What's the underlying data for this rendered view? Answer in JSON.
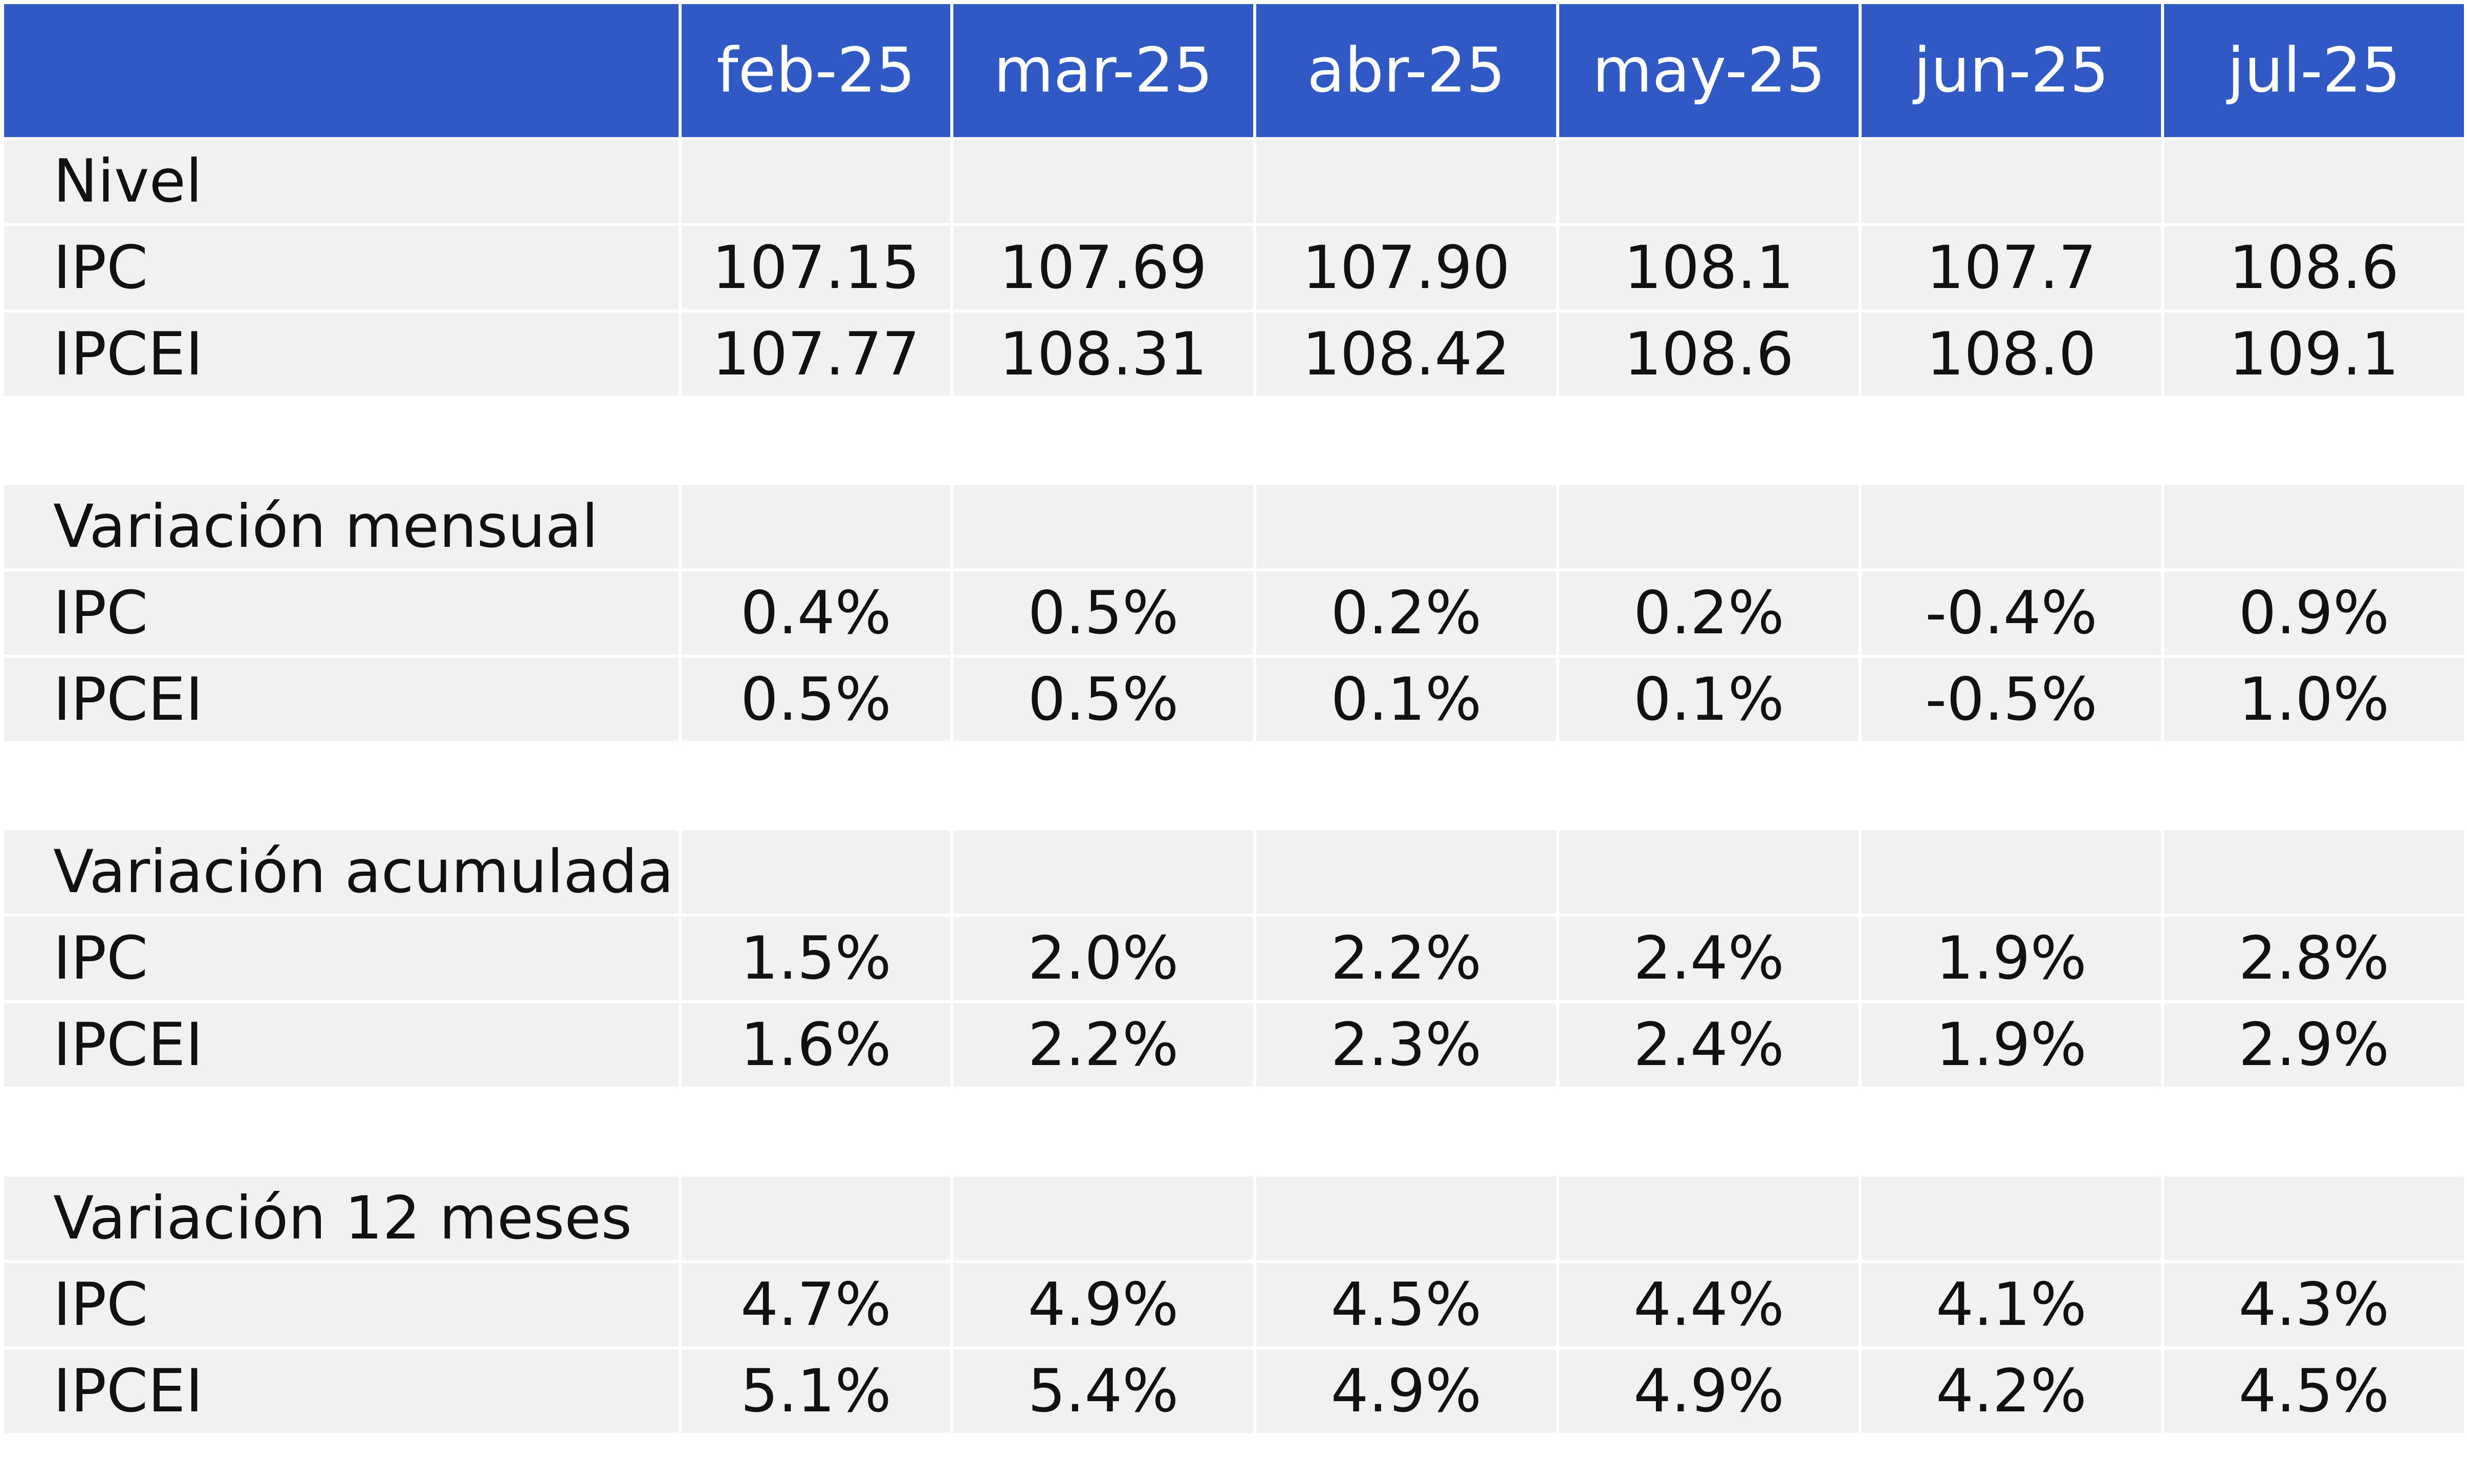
{
  "chart_data": {
    "type": "table",
    "columns": [
      "feb-25",
      "mar-25",
      "abr-25",
      "may-25",
      "jun-25",
      "jul-25"
    ],
    "sections": [
      {
        "title": "Nivel",
        "rows": [
          {
            "label": "IPC",
            "values": [
              "107.15",
              "107.69",
              "107.90",
              "108.1",
              "107.7",
              "108.6"
            ]
          },
          {
            "label": "IPCEI",
            "values": [
              "107.77",
              "108.31",
              "108.42",
              "108.6",
              "108.0",
              "109.1"
            ]
          }
        ]
      },
      {
        "title": "Variación mensual",
        "rows": [
          {
            "label": "IPC",
            "values": [
              "0.4%",
              "0.5%",
              "0.2%",
              "0.2%",
              "-0.4%",
              "0.9%"
            ]
          },
          {
            "label": "IPCEI",
            "values": [
              "0.5%",
              "0.5%",
              "0.1%",
              "0.1%",
              "-0.5%",
              "1.0%"
            ]
          }
        ]
      },
      {
        "title": "Variación acumulada",
        "rows": [
          {
            "label": "IPC",
            "values": [
              "1.5%",
              "2.0%",
              "2.2%",
              "2.4%",
              "1.9%",
              "2.8%"
            ]
          },
          {
            "label": "IPCEI",
            "values": [
              "1.6%",
              "2.2%",
              "2.3%",
              "2.4%",
              "1.9%",
              "2.9%"
            ]
          }
        ]
      },
      {
        "title": "Variación 12 meses",
        "rows": [
          {
            "label": "IPC",
            "values": [
              "4.7%",
              "4.9%",
              "4.5%",
              "4.4%",
              "4.1%",
              "4.3%"
            ]
          },
          {
            "label": "IPCEI",
            "values": [
              "5.1%",
              "5.4%",
              "4.9%",
              "4.9%",
              "4.2%",
              "4.5%"
            ]
          }
        ]
      }
    ],
    "colors": {
      "header_bg": "#3159C6",
      "header_text": "#ffffff",
      "body_bg": "#f1f1f1",
      "text": "#111111",
      "grid": "#ffffff"
    }
  }
}
